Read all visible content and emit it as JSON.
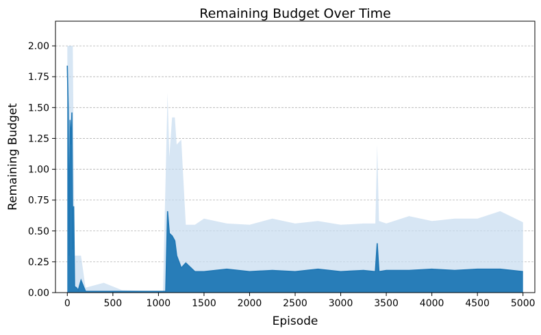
{
  "chart_data": {
    "type": "line",
    "title": "Remaining Budget Over Time",
    "xlabel": "Episode",
    "ylabel": "Remaining Budget",
    "xlim": [
      -130,
      5130
    ],
    "ylim": [
      0,
      2.2
    ],
    "xticks": [
      0,
      500,
      1000,
      1500,
      2000,
      2500,
      3000,
      3500,
      4000,
      4500,
      5000
    ],
    "yticks": [
      "0.00",
      "0.25",
      "0.50",
      "0.75",
      "1.00",
      "1.25",
      "1.50",
      "1.75",
      "2.00"
    ],
    "grid": "horizontal-dashed",
    "legend": "none",
    "colors": {
      "mean_line": "#1f77b4",
      "band": "#c6dbef"
    },
    "series": [
      {
        "role": "mean",
        "x": [
          0,
          10,
          20,
          30,
          40,
          50,
          60,
          70,
          80,
          100,
          120,
          150,
          200,
          300,
          400,
          500,
          600,
          700,
          800,
          900,
          1000,
          1050,
          1080,
          1100,
          1120,
          1150,
          1180,
          1200,
          1250,
          1300,
          1400,
          1500,
          1750,
          2000,
          2250,
          2500,
          2750,
          3000,
          3250,
          3380,
          3400,
          3420,
          3500,
          3750,
          4000,
          4250,
          4500,
          4750,
          5000
        ],
        "y": [
          1.84,
          1.5,
          0.3,
          1.4,
          1.2,
          1.46,
          0.35,
          0.7,
          0.05,
          0.04,
          0.02,
          0.1,
          0.01,
          0.01,
          0.01,
          0.01,
          0.01,
          0.01,
          0.01,
          0.01,
          0.01,
          0.01,
          0.01,
          0.66,
          0.48,
          0.46,
          0.42,
          0.3,
          0.2,
          0.24,
          0.17,
          0.17,
          0.19,
          0.17,
          0.18,
          0.17,
          0.19,
          0.17,
          0.18,
          0.17,
          0.4,
          0.17,
          0.18,
          0.18,
          0.19,
          0.18,
          0.19,
          0.19,
          0.17
        ]
      },
      {
        "role": "band_upper",
        "x": [
          0,
          10,
          20,
          30,
          40,
          60,
          80,
          100,
          150,
          200,
          400,
          600,
          1000,
          1050,
          1100,
          1120,
          1150,
          1180,
          1200,
          1250,
          1300,
          1400,
          1500,
          1750,
          2000,
          2250,
          2500,
          2750,
          3000,
          3250,
          3380,
          3400,
          3420,
          3500,
          3750,
          4000,
          4250,
          4500,
          4750,
          5000
        ],
        "y": [
          2.0,
          2.0,
          2.0,
          2.0,
          2.0,
          2.0,
          0.3,
          0.3,
          0.3,
          0.04,
          0.08,
          0.02,
          0.01,
          0.01,
          1.62,
          1.1,
          1.42,
          1.42,
          1.2,
          1.24,
          0.55,
          0.55,
          0.6,
          0.56,
          0.55,
          0.6,
          0.56,
          0.58,
          0.55,
          0.56,
          0.56,
          1.2,
          0.58,
          0.56,
          0.62,
          0.58,
          0.6,
          0.6,
          0.66,
          0.57
        ]
      }
    ]
  }
}
